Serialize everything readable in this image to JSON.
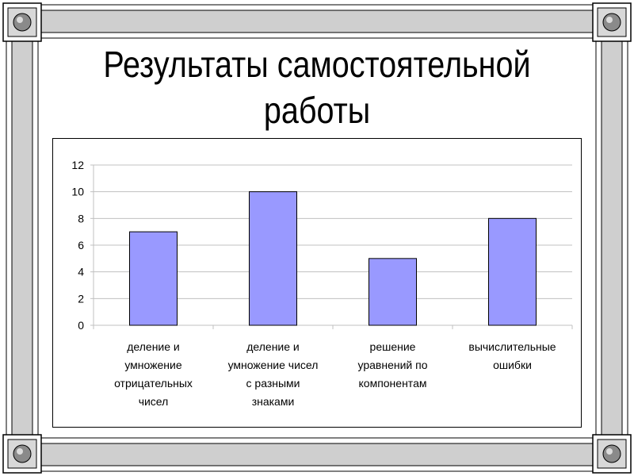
{
  "slide": {
    "title_lines": [
      "Результаты самостоятельной",
      "работы"
    ]
  },
  "chart_data": {
    "type": "bar",
    "title": "",
    "xlabel": "",
    "ylabel": "",
    "categories": [
      "деление и умножение отрицательных чисел",
      "деление и умножение чисел с разными знаками",
      "решение уравнений по компонентам",
      "вычислительные ошибки"
    ],
    "category_label_lines": [
      [
        "деление и",
        "умножение",
        "отрицательных",
        "чисел"
      ],
      [
        "деление и",
        "умножение чисел",
        "с разными",
        "знаками"
      ],
      [
        "решение",
        "уравнений по",
        "компонентам"
      ],
      [
        "вычислительные",
        "ошибки"
      ]
    ],
    "values": [
      7,
      10,
      5,
      8
    ],
    "ylim": [
      0,
      12
    ],
    "yticks": [
      0,
      2,
      4,
      6,
      8,
      10,
      12
    ],
    "grid": true,
    "legend": "none",
    "bar_color": "#9999ff",
    "bar_border_color": "#000000",
    "grid_color": "#c0c0c0"
  }
}
